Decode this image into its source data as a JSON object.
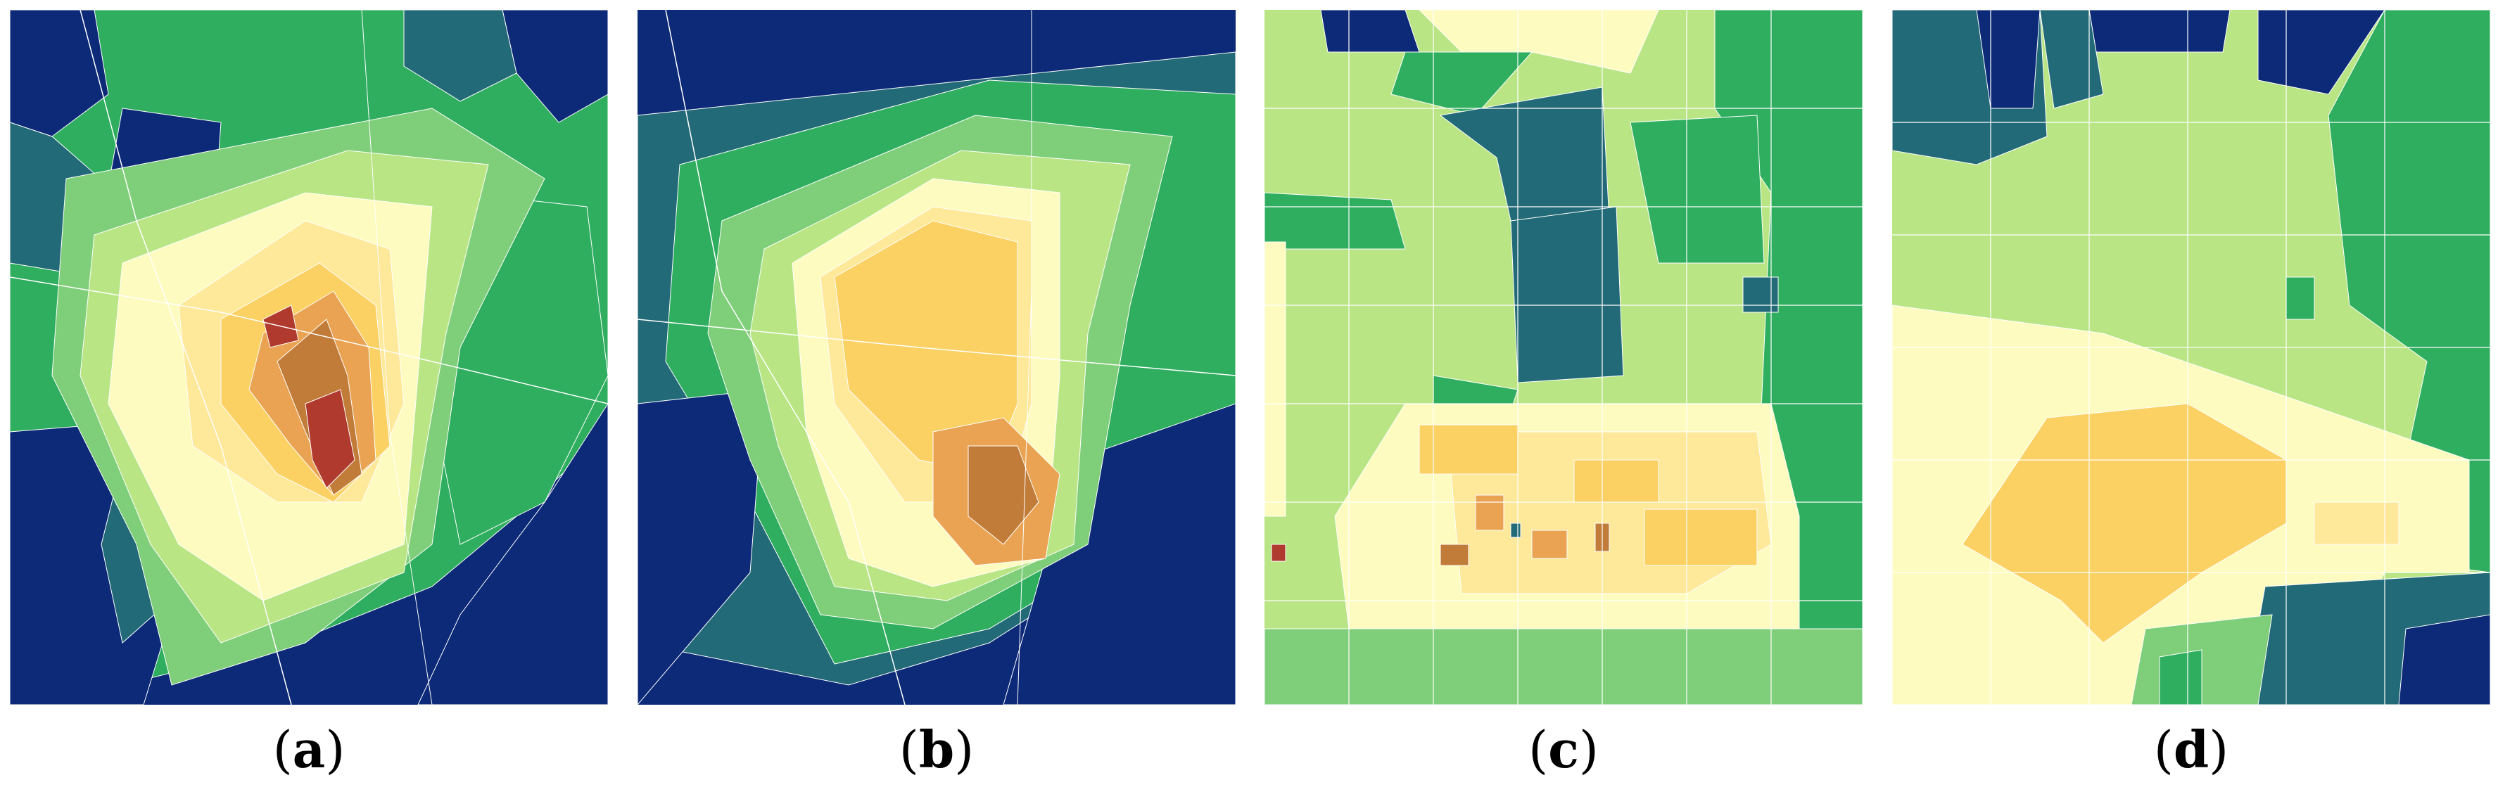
{
  "figure": {
    "panels": [
      {
        "id": "a",
        "caption_open": "(",
        "caption_label": "a",
        "caption_close": ")"
      },
      {
        "id": "b",
        "caption_open": "(",
        "caption_label": "b",
        "caption_close": ")"
      },
      {
        "id": "c",
        "caption_open": "(",
        "caption_label": "c",
        "caption_close": ")"
      },
      {
        "id": "d",
        "caption_open": "(",
        "caption_label": "d",
        "caption_close": ")"
      }
    ]
  },
  "palette": {
    "navy": "#0d2a78",
    "teal": "#236a78",
    "green": "#2fae5f",
    "light_green": "#7fce79",
    "pale_green": "#b9e585",
    "cream": "#fdfbbf",
    "light_yellow": "#fee89a",
    "yellow": "#fbd164",
    "orange": "#e9a352",
    "brown": "#c27c3a",
    "red": "#b03a2e",
    "boundary": "#ffffff"
  }
}
